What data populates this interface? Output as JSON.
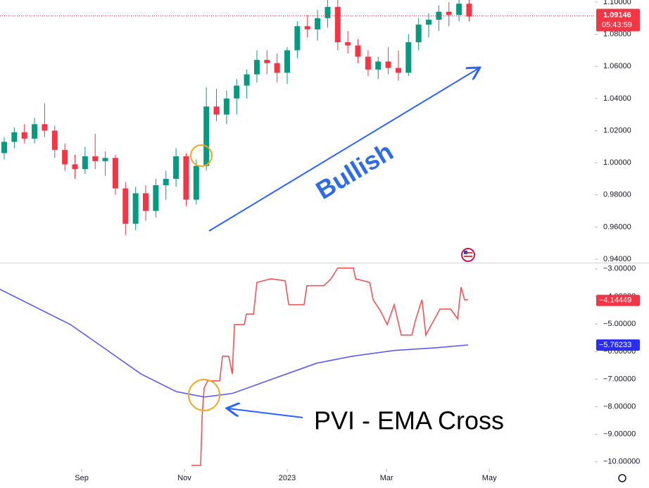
{
  "chart_data": [
    {
      "type": "candlestick",
      "x": [
        -46,
        -40,
        -34,
        -28,
        -22,
        -16,
        -10,
        -4,
        2,
        8,
        14,
        20,
        26,
        32,
        38,
        44,
        50,
        56,
        62,
        68,
        74,
        80,
        86,
        92,
        98,
        104,
        110,
        116,
        122,
        128,
        134,
        140,
        146,
        152,
        158,
        164,
        170,
        176,
        182,
        188,
        194,
        200,
        206,
        212,
        218,
        224,
        230
      ],
      "open": [
        1.006,
        1.013,
        1.019,
        1.015,
        1.024,
        1.02,
        1.008,
        0.999,
        0.996,
        1.004,
        1.001,
        1.003,
        0.984,
        0.962,
        0.981,
        0.97,
        0.986,
        0.99,
        1.004,
        0.977,
        0.998,
        1.035,
        1.03,
        1.04,
        1.048,
        1.055,
        1.064,
        1.062,
        1.056,
        1.07,
        1.085,
        1.083,
        1.09,
        1.097,
        1.075,
        1.073,
        1.066,
        1.058,
        1.063,
        1.059,
        1.056,
        1.075,
        1.086,
        1.089,
        1.094,
        1.092,
        1.099
      ],
      "high": [
        1.016,
        1.022,
        1.024,
        1.028,
        1.037,
        1.023,
        1.012,
        1.005,
        1.01,
        1.018,
        1.007,
        1.005,
        0.988,
        0.985,
        0.986,
        0.99,
        0.995,
        1.009,
        1.006,
        1.002,
        1.047,
        1.046,
        1.045,
        1.052,
        1.058,
        1.07,
        1.07,
        1.068,
        1.072,
        1.088,
        1.092,
        1.095,
        1.103,
        1.104,
        1.082,
        1.077,
        1.07,
        1.066,
        1.072,
        1.07,
        1.08,
        1.09,
        1.093,
        1.098,
        1.1,
        1.104,
        1.102
      ],
      "low": [
        1.002,
        1.009,
        1.012,
        1.012,
        1.016,
        1.003,
        0.995,
        0.99,
        0.993,
        0.996,
        0.992,
        0.98,
        0.955,
        0.958,
        0.964,
        0.966,
        0.977,
        0.985,
        0.973,
        0.974,
        0.995,
        1.026,
        1.024,
        1.03,
        1.04,
        1.05,
        1.055,
        1.05,
        1.049,
        1.065,
        1.078,
        1.076,
        1.084,
        1.07,
        1.068,
        1.062,
        1.054,
        1.052,
        1.055,
        1.051,
        1.054,
        1.07,
        1.078,
        1.082,
        1.085,
        1.088,
        1.088
      ],
      "close": [
        1.013,
        1.019,
        1.015,
        1.024,
        1.02,
        1.008,
        0.999,
        0.996,
        1.004,
        1.001,
        1.003,
        0.984,
        0.962,
        0.981,
        0.97,
        0.986,
        0.99,
        1.004,
        0.977,
        0.998,
        1.035,
        1.03,
        1.04,
        1.048,
        1.055,
        1.064,
        1.062,
        1.056,
        1.07,
        1.085,
        1.083,
        1.09,
        1.097,
        1.075,
        1.073,
        1.066,
        1.058,
        1.063,
        1.059,
        1.056,
        1.075,
        1.086,
        1.089,
        1.094,
        1.092,
        1.099,
        1.091
      ],
      "up_color": "#089981",
      "down_color": "#f23645",
      "xlim": [
        -48.5,
        304.6
      ],
      "ylim": [
        0.9378,
        1.1013
      ],
      "yticks": [
        {
          "value": 0.94,
          "label": "0.94000"
        },
        {
          "value": 0.96,
          "label": "0.96000"
        },
        {
          "value": 0.98,
          "label": "0.98000"
        },
        {
          "value": 1.0,
          "label": "1.00000"
        },
        {
          "value": 1.02,
          "label": "1.02000"
        },
        {
          "value": 1.04,
          "label": "1.04000"
        },
        {
          "value": 1.06,
          "label": "1.06000"
        },
        {
          "value": 1.08,
          "label": "1.08000"
        },
        {
          "value": 1.1,
          "label": "1.10000"
        }
      ],
      "last_price": 1.09146,
      "countdown": "05:43:59",
      "annotation": "Bullish"
    },
    {
      "type": "line",
      "series": [
        {
          "color": "#f05454",
          "x": [
            65.2,
            70.6,
            71.5,
            72.7,
            74.8,
            81.9,
            83.6,
            87.3,
            89.4,
            90.7,
            96.5,
            97.8,
            102,
            104,
            112.4,
            120.8,
            122.9,
            132,
            133.7,
            143.8,
            148,
            152,
            161.3,
            162.6,
            171,
            173,
            177.2,
            181.4,
            185.5,
            189.7,
            196,
            198,
            202,
            204.3,
            212.7,
            219,
            223.2,
            225.2,
            227.3,
            229.4
          ],
          "values": [
            -10.13,
            -10.13,
            -8.34,
            -7.32,
            -7.06,
            -7.06,
            -6.17,
            -6.17,
            -6.81,
            -5.02,
            -5.02,
            -4.64,
            -4.64,
            -3.49,
            -3.36,
            -3.43,
            -4.3,
            -4.3,
            -3.61,
            -3.61,
            -3.36,
            -2.97,
            -2.97,
            -3.36,
            -3.49,
            -4.12,
            -4.51,
            -5.02,
            -4.3,
            -5.4,
            -5.4,
            -4.89,
            -4.12,
            -5.4,
            -4.46,
            -4.46,
            -4.81,
            -3.66,
            -4.12,
            -4.12
          ],
          "last_value": {
            "value": -4.14449,
            "label": "−4.14449"
          }
        },
        {
          "color": "#5b5bf0",
          "x": [
            -48.5,
            -6.7,
            14.2,
            35.1,
            56,
            72.7,
            89.4,
            110.3,
            139.6,
            160.5,
            185.5,
            210.6,
            229.4
          ],
          "values": [
            -3.74,
            -5.02,
            -5.91,
            -6.81,
            -7.45,
            -7.65,
            -7.52,
            -7.06,
            -6.42,
            -6.17,
            -5.96,
            -5.86,
            -5.76
          ],
          "last_value": {
            "value": -5.76233,
            "label": "−5.76233"
          }
        }
      ],
      "xlim": [
        -48.5,
        304.6
      ],
      "xticks": [
        {
          "value": 0,
          "label": "Sep"
        },
        {
          "value": 61,
          "label": "Nov"
        },
        {
          "value": 122,
          "label": "2023"
        },
        {
          "value": 181,
          "label": "Mar"
        },
        {
          "value": 242,
          "label": "May"
        }
      ],
      "ylim": [
        -10.26,
        -2.8
      ],
      "yticks": [
        {
          "value": -3,
          "label": "−3.00000"
        },
        {
          "value": -4,
          "label": "−4.00000"
        },
        {
          "value": -5,
          "label": "−5.00000"
        },
        {
          "value": -6,
          "label": "−6.00000"
        },
        {
          "value": -7,
          "label": "−7.00000"
        },
        {
          "value": -8,
          "label": "−8.00000"
        },
        {
          "value": -9,
          "label": "−9.00000"
        },
        {
          "value": -10,
          "label": "−10.00000"
        }
      ],
      "annotation": "PVI - EMA Cross"
    }
  ]
}
